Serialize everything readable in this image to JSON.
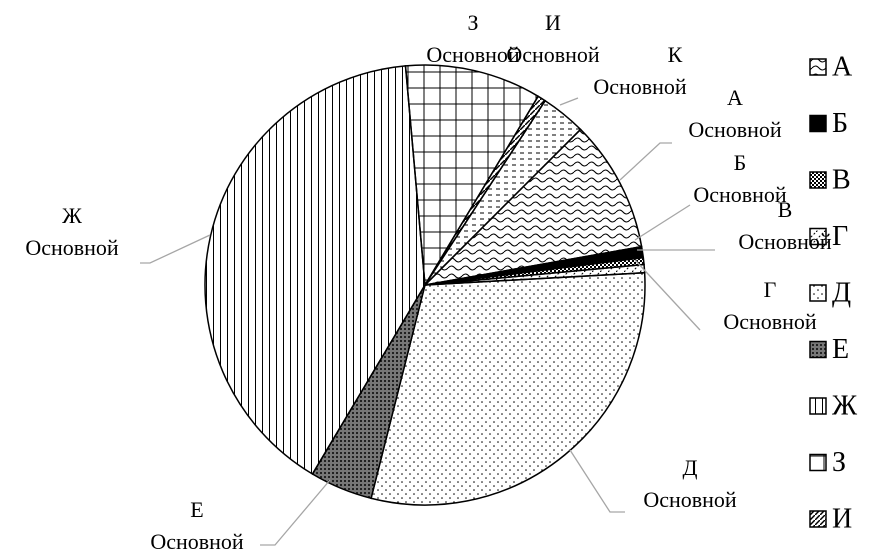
{
  "chart_data": {
    "type": "pie",
    "series_name": "Основной",
    "categories": [
      "А",
      "Б",
      "В",
      "Г",
      "Д",
      "Е",
      "Ж",
      "З",
      "И",
      "К"
    ],
    "values": [
      9.7,
      0.8,
      0.5,
      0.6,
      29.8,
      4.6,
      40,
      10,
      0.6,
      3.3
    ],
    "color": "#000000",
    "legend": "right"
  }
}
